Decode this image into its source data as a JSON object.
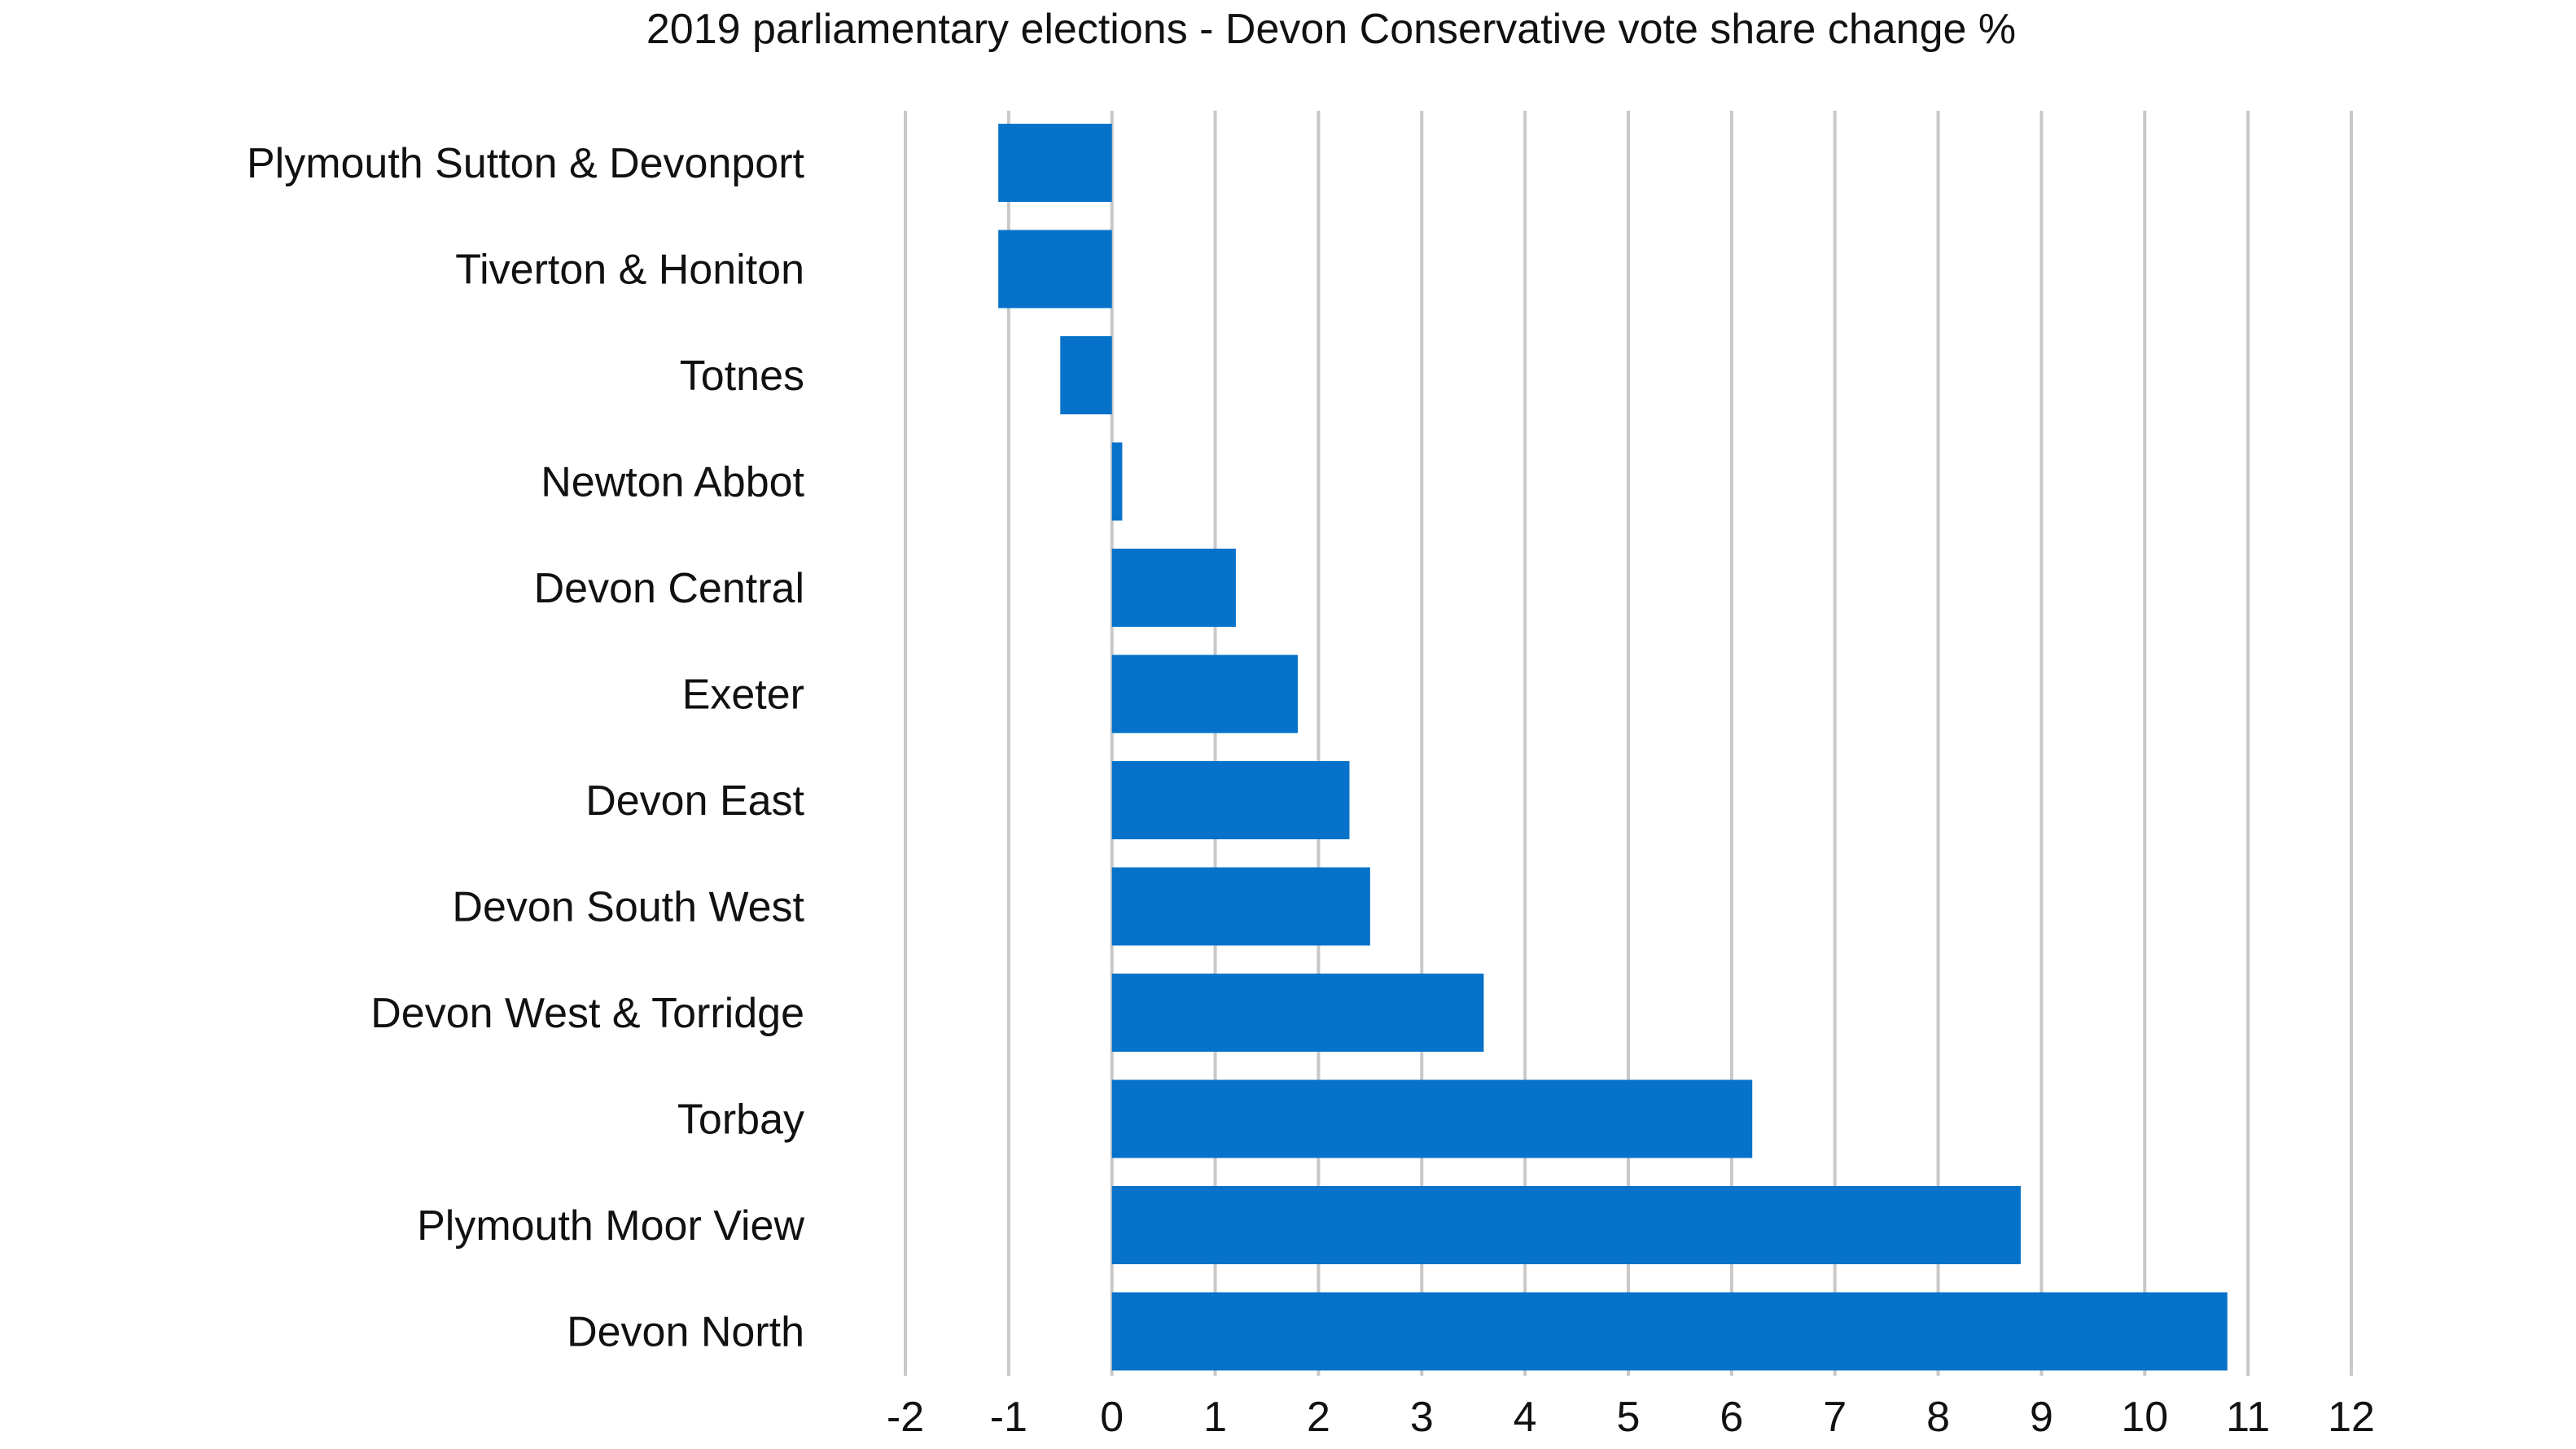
{
  "chart_data": {
    "type": "bar",
    "orientation": "horizontal",
    "title": "2019 parliamentary elections - Devon Conservative vote share change %",
    "categories": [
      "Plymouth Sutton & Devonport",
      "Tiverton & Honiton",
      "Totnes",
      "Newton Abbot",
      "Devon Central",
      "Exeter",
      "Devon East",
      "Devon South West",
      "Devon West & Torridge",
      "Torbay",
      "Plymouth Moor View",
      "Devon North"
    ],
    "values": [
      -1.1,
      -1.1,
      -0.5,
      0.1,
      1.2,
      1.8,
      2.3,
      2.5,
      3.6,
      6.2,
      8.8,
      10.8
    ],
    "xlim": [
      -2,
      12
    ],
    "xticks": [
      "-2",
      "-1",
      "0",
      "1",
      "2",
      "3",
      "4",
      "5",
      "6",
      "7",
      "8",
      "9",
      "10",
      "11",
      "12"
    ],
    "grid": "vertical",
    "bar_color": "#0672C9",
    "grid_color": "#C8C8C8"
  }
}
